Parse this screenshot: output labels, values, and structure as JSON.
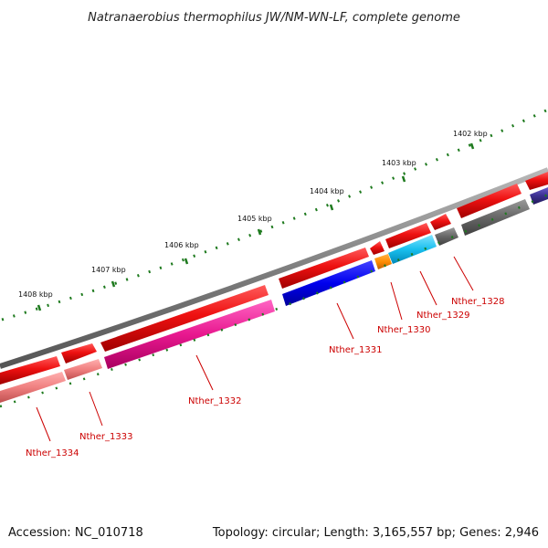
{
  "map": {
    "title": "Natranaerobius thermophilus JW/NM-WN-LF, complete genome",
    "accession": "Accession: NC_010718",
    "summary": "Topology: circular; Length: 3,165,557 bp; Genes: 2,946",
    "kbp_labels": [
      "1402 kbp",
      "1403 kbp",
      "1404 kbp",
      "1405 kbp",
      "1406 kbp",
      "1407 kbp",
      "1408 kbp"
    ],
    "gene_labels": [
      "Nther_1328",
      "Nther_1329",
      "Nther_1330",
      "Nther_1331",
      "Nther_1332",
      "Nther_1333",
      "Nther_1334"
    ],
    "colors": {
      "backbone": "#888888",
      "forward_cds": "#ee1111",
      "tick": "#1e7a1e",
      "label": "#cc0000"
    }
  }
}
